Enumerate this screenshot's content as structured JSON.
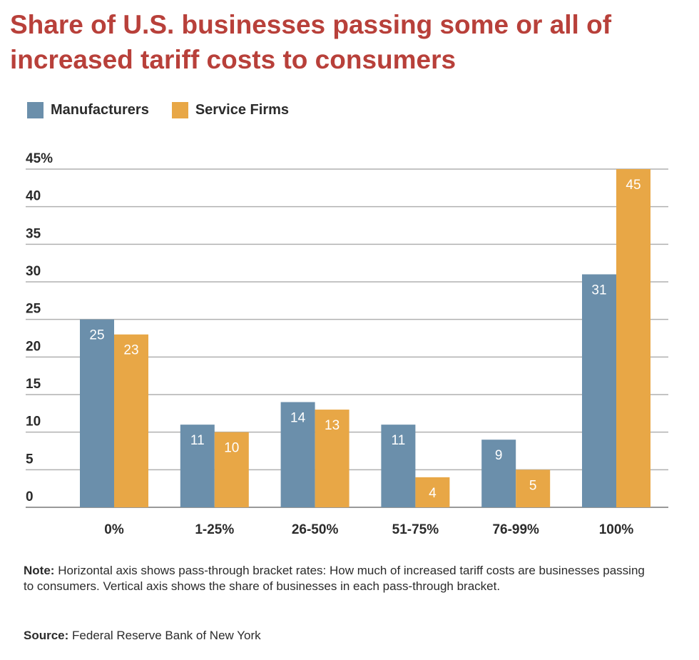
{
  "chart_data": {
    "type": "bar",
    "title": "Share of U.S. businesses passing some or all of increased tariff costs to consumers",
    "categories": [
      "0%",
      "1-25%",
      "26-50%",
      "51-75%",
      "76-99%",
      "100%"
    ],
    "series": [
      {
        "name": "Manufacturers",
        "color": "#6b8fab",
        "values": [
          25,
          11,
          14,
          11,
          9,
          31
        ]
      },
      {
        "name": "Service Firms",
        "color": "#e8a746",
        "values": [
          23,
          10,
          13,
          4,
          5,
          45
        ]
      }
    ],
    "ylim": [
      0,
      45
    ],
    "yticks": [
      0,
      5,
      10,
      15,
      20,
      25,
      30,
      35,
      40,
      45
    ],
    "ytick_labels": [
      "0",
      "5",
      "10",
      "15",
      "20",
      "25",
      "30",
      "35",
      "40",
      "45%"
    ],
    "xlabel": "",
    "ylabel": "",
    "grid": true,
    "legend": "top-left"
  },
  "note_label": "Note:",
  "note": "Horizontal axis shows pass-through bracket rates: How much of increased tariff costs are businesses passing to consumers. Vertical axis shows the share of businesses in each pass-through bracket.",
  "source_label": "Source:",
  "source": "Federal Reserve Bank of New York"
}
